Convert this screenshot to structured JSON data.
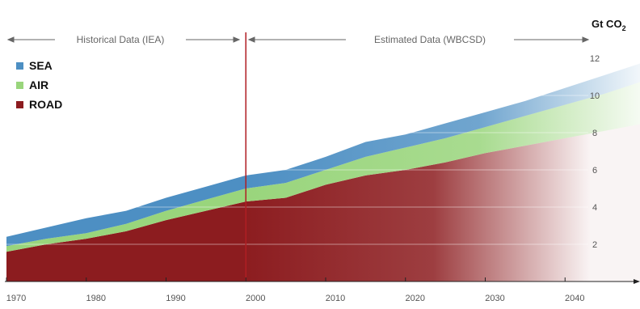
{
  "chart_data": {
    "type": "area",
    "stacked": true,
    "unit_label": "Gt CO",
    "unit_subscript": "2",
    "annotations": {
      "historical": "Historical Data (IEA)",
      "estimated": "Estimated Data (WBCSD)",
      "split_year": 2000
    },
    "x": [
      1970,
      1975,
      1980,
      1985,
      1990,
      1995,
      2000,
      2005,
      2010,
      2015,
      2020,
      2025,
      2030,
      2035,
      2040,
      2045,
      2050
    ],
    "x_ticks": [
      "1970",
      "1980",
      "1990",
      "2000",
      "2010",
      "2020",
      "2030",
      "2040"
    ],
    "y_ticks": [
      "2",
      "4",
      "6",
      "8",
      "10",
      "12"
    ],
    "xlim": [
      1970,
      2050
    ],
    "ylim": [
      0,
      12
    ],
    "grid": true,
    "legend_position": "top-left",
    "series": [
      {
        "name": "ROAD",
        "color": "#8c1c1f",
        "values": [
          1.6,
          2.0,
          2.3,
          2.7,
          3.3,
          3.8,
          4.3,
          4.5,
          5.2,
          5.7,
          6.0,
          6.4,
          6.9,
          7.3,
          7.7,
          8.1,
          8.5
        ]
      },
      {
        "name": "AIR",
        "color": "#99d57c",
        "values": [
          0.3,
          0.3,
          0.3,
          0.4,
          0.5,
          0.6,
          0.7,
          0.8,
          0.8,
          1.0,
          1.2,
          1.3,
          1.4,
          1.6,
          1.8,
          2.0,
          2.3
        ]
      },
      {
        "name": "SEA",
        "color": "#4d8fc3",
        "values": [
          0.5,
          0.6,
          0.8,
          0.7,
          0.7,
          0.7,
          0.7,
          0.7,
          0.7,
          0.8,
          0.7,
          0.8,
          0.8,
          0.8,
          0.9,
          1.0,
          1.0
        ]
      }
    ]
  }
}
